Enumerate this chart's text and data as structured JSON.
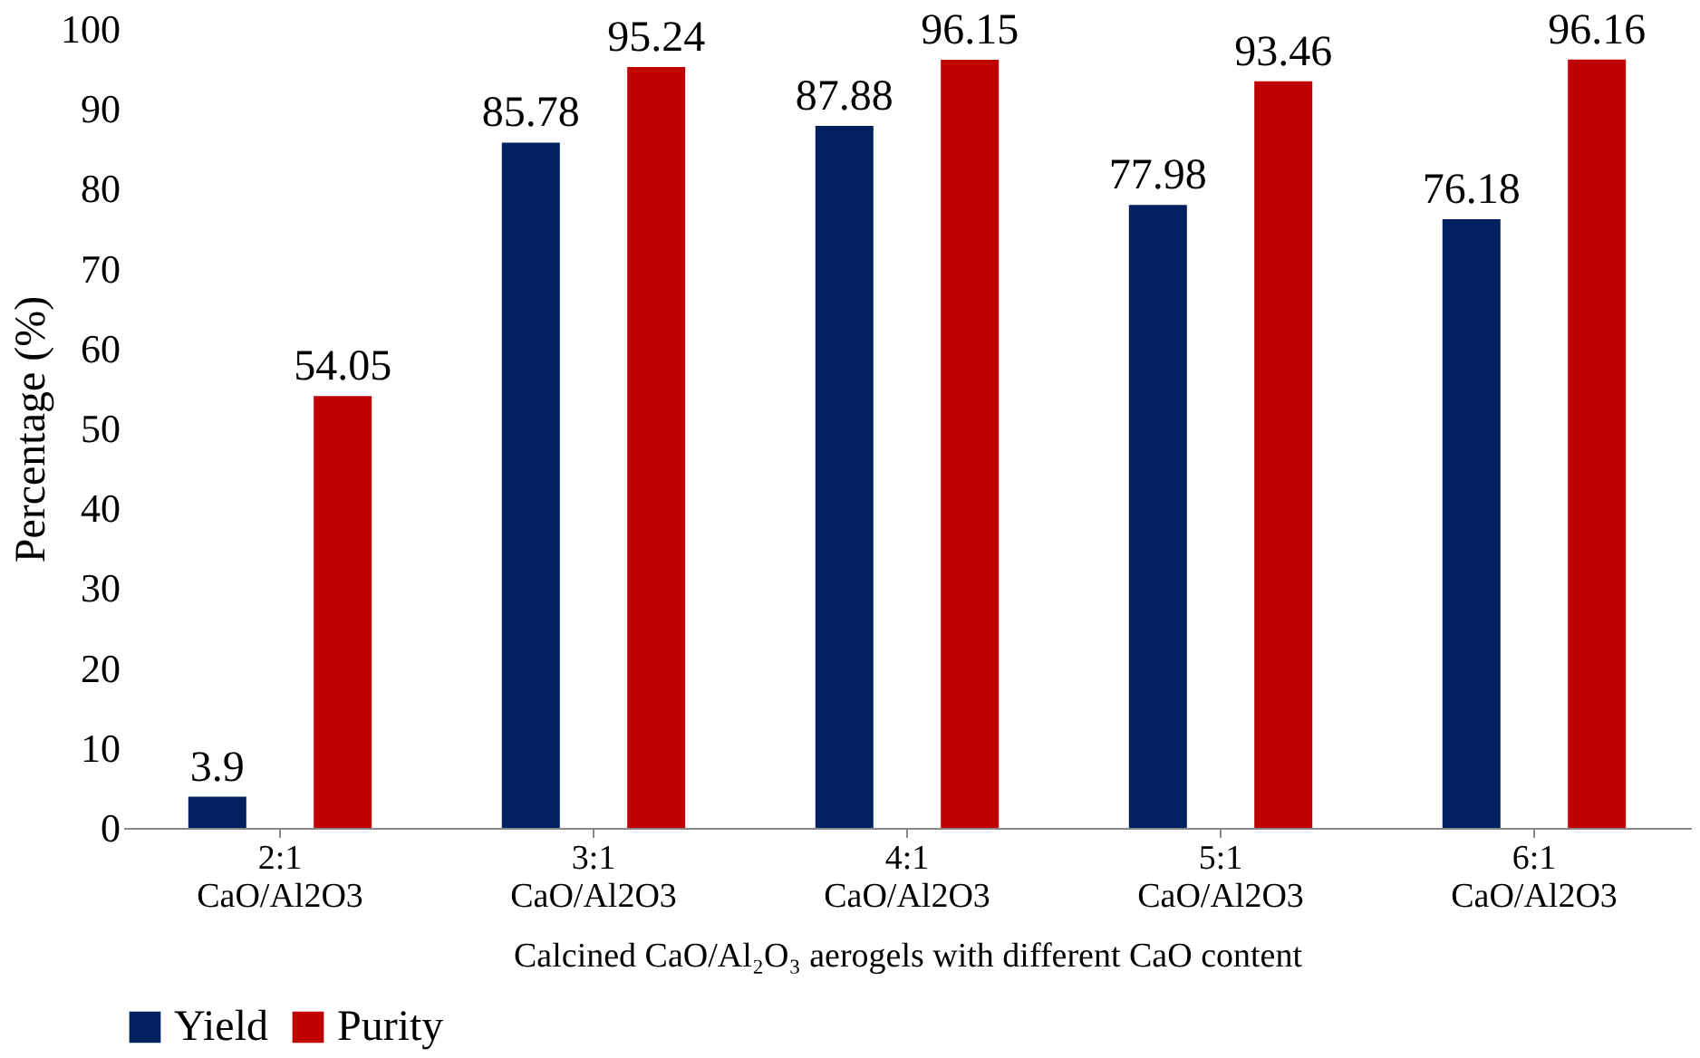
{
  "chart_data": {
    "type": "bar",
    "xlabel": "Calcined CaO/Al₂O₃ aerogels with different CaO content",
    "ylabel": "Percentage (%)",
    "categories": [
      "2:1 CaO/Al2O3",
      "3:1 CaO/Al2O3",
      "4:1 CaO/Al2O3",
      "5:1 CaO/Al2O3",
      "6:1 CaO/Al2O3"
    ],
    "series": [
      {
        "name": "Yield",
        "color": "#002060",
        "values": [
          3.9,
          85.78,
          87.88,
          77.98,
          76.18
        ]
      },
      {
        "name": "Purity",
        "color": "#c00000",
        "values": [
          54.05,
          95.24,
          96.15,
          93.46,
          96.16
        ]
      }
    ],
    "ylim": [
      0,
      100
    ],
    "yticks": [
      0,
      10,
      20,
      30,
      40,
      50,
      60,
      70,
      80,
      90,
      100
    ],
    "grid": false,
    "legend": "bottom",
    "data_labels": true
  }
}
